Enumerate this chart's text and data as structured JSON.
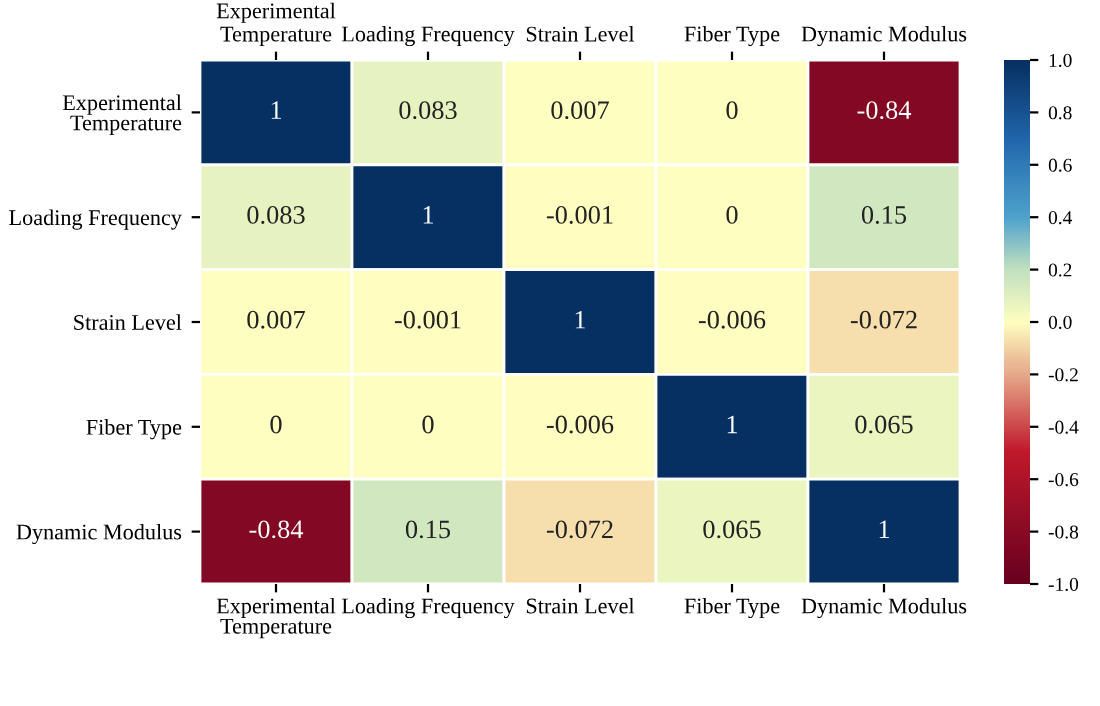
{
  "chart_data": {
    "type": "heatmap",
    "categories": [
      "Experimental\nTemperature",
      "Loading Frequency",
      "Strain Level",
      "Fiber Type",
      "Dynamic Modulus"
    ],
    "y_categories": [
      "Experimental\nTemperature",
      "Loading Frequency",
      "Strain Level",
      "Fiber Type",
      "Dynamic Modulus"
    ],
    "cells": [
      [
        1,
        0.083,
        0.007,
        0,
        -0.84
      ],
      [
        0.083,
        1,
        -0.001,
        0,
        0.15
      ],
      [
        0.007,
        -0.001,
        1,
        -0.006,
        -0.072
      ],
      [
        0,
        0,
        -0.006,
        1,
        0.065
      ],
      [
        -0.84,
        0.15,
        -0.072,
        0.065,
        1
      ]
    ],
    "clim": [
      -1,
      1
    ],
    "cticks": [
      {
        "value": -1,
        "label": "-1.0"
      },
      {
        "value": -0.8,
        "label": "-0.8"
      },
      {
        "value": -0.6,
        "label": "-0.6"
      },
      {
        "value": -0.4,
        "label": "-0.4"
      },
      {
        "value": -0.2,
        "label": "-0.2"
      },
      {
        "value": 0,
        "label": "0.0"
      },
      {
        "value": 0.2,
        "label": "0.2"
      },
      {
        "value": 0.4,
        "label": "0.4"
      },
      {
        "value": 0.6,
        "label": "0.6"
      },
      {
        "value": 0.8,
        "label": "0.8"
      },
      {
        "value": 1,
        "label": "1.0"
      }
    ],
    "data_labels": true
  }
}
